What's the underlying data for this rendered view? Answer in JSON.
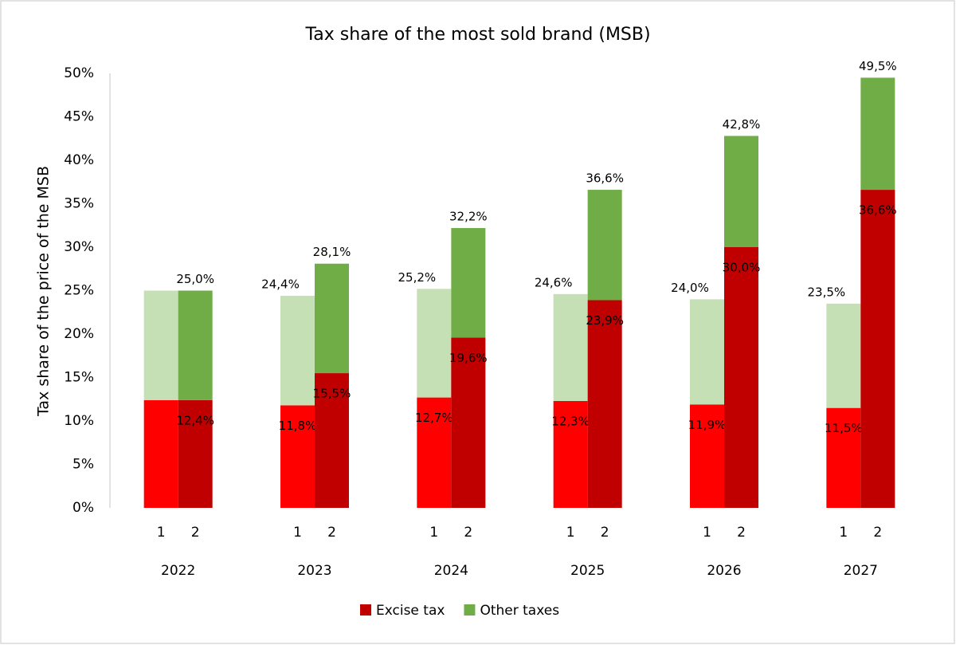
{
  "chart_data": {
    "type": "bar",
    "stacked": true,
    "title": "Tax share of the most sold brand (MSB)",
    "y_label": "Tax share of the price of the MSB",
    "groups": [
      "2022",
      "2023",
      "2024",
      "2025",
      "2026",
      "2027"
    ],
    "categories": [
      "1",
      "2",
      "1",
      "2",
      "1",
      "2",
      "1",
      "2",
      "1",
      "2",
      "1",
      "2"
    ],
    "ylim": [
      0,
      50
    ],
    "yticks": [
      {
        "value": 0,
        "label": "0%"
      },
      {
        "value": 5,
        "label": "5%"
      },
      {
        "value": 10,
        "label": "10%"
      },
      {
        "value": 15,
        "label": "15%"
      },
      {
        "value": 20,
        "label": "20%"
      },
      {
        "value": 25,
        "label": "25%"
      },
      {
        "value": 30,
        "label": "30%"
      },
      {
        "value": 35,
        "label": "35%"
      },
      {
        "value": 40,
        "label": "40%"
      },
      {
        "value": 45,
        "label": "45%"
      },
      {
        "value": 50,
        "label": "50%"
      }
    ],
    "grid": false,
    "legend": "bottom",
    "series": [
      {
        "name": "Excise tax",
        "color": "#c00000",
        "bar_colors": [
          "#ff0000",
          "#c00000"
        ],
        "values": [
          12.4,
          12.4,
          11.8,
          15.5,
          12.7,
          19.6,
          12.3,
          23.9,
          11.9,
          30.0,
          11.5,
          36.6
        ],
        "value_labels": [
          null,
          "12,4%",
          "11,8%",
          "15,5%",
          "12,7%",
          "19,6%",
          "12,3%",
          "23,9%",
          "11,9%",
          "30,0%",
          "11,5%",
          "36,6%"
        ]
      },
      {
        "name": "Other taxes",
        "color": "#70ad47",
        "bar_colors": [
          "#c5e0b4",
          "#70ad47"
        ],
        "values": [
          12.6,
          12.6,
          12.6,
          12.6,
          12.5,
          12.6,
          12.3,
          12.7,
          12.1,
          12.8,
          12.0,
          12.9
        ]
      }
    ],
    "totals": [
      25.0,
      25.0,
      24.4,
      28.1,
      25.2,
      32.2,
      24.6,
      36.6,
      24.0,
      42.8,
      23.5,
      49.5
    ],
    "total_labels": [
      null,
      "25,0%",
      "24,4%",
      "28,1%",
      "25,2%",
      "32,2%",
      "24,6%",
      "36,6%",
      "24,0%",
      "42,8%",
      "23,5%",
      "49,5%"
    ]
  }
}
